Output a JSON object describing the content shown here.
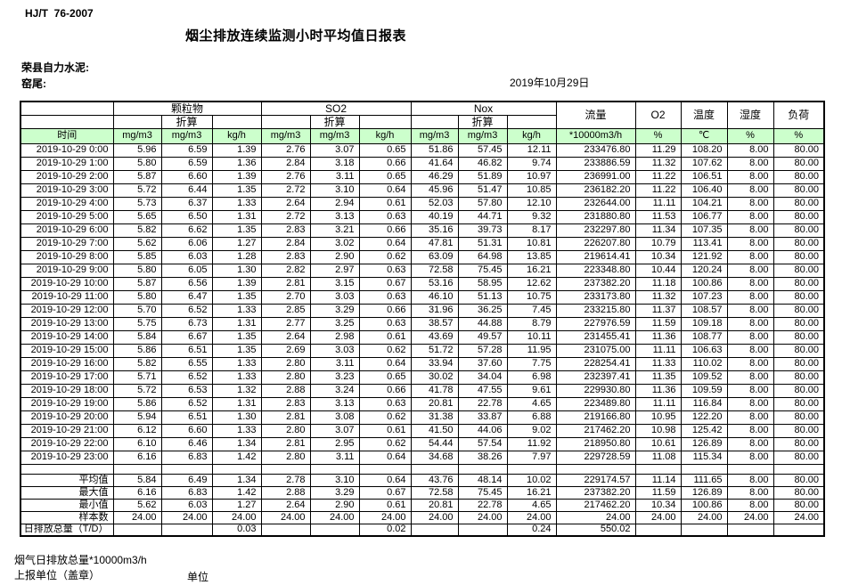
{
  "page": {
    "standard": "HJ/T  76-2007",
    "title": "烟尘排放连续监测小时平均值日报表",
    "company": "荣县自力水泥:",
    "site": "窑尾:",
    "date": "2019年10月29日"
  },
  "table": {
    "time_header": "时间",
    "converted_label": "折算",
    "group_units": [
      "mg/m3",
      "mg/m3",
      "kg/h"
    ],
    "groups": [
      {
        "label": "颗粒物"
      },
      {
        "label": "SO2"
      },
      {
        "label": "Nox"
      }
    ],
    "single_columns": [
      {
        "label": "流量",
        "unit": "*10000m3/h"
      },
      {
        "label": "O2",
        "unit": "%"
      },
      {
        "label": "温度",
        "unit": "℃"
      },
      {
        "label": "湿度",
        "unit": "%"
      },
      {
        "label": "负荷",
        "unit": "%"
      }
    ],
    "rows": [
      {
        "time": "2019-10-29 0:00",
        "values": [
          "5.96",
          "6.59",
          "1.39",
          "2.76",
          "3.07",
          "0.65",
          "51.86",
          "57.45",
          "12.11",
          "233476.80",
          "11.29",
          "108.20",
          "8.00",
          "80.00"
        ]
      },
      {
        "time": "2019-10-29 1:00",
        "values": [
          "5.80",
          "6.59",
          "1.36",
          "2.84",
          "3.18",
          "0.66",
          "41.64",
          "46.82",
          "9.74",
          "233886.59",
          "11.32",
          "107.62",
          "8.00",
          "80.00"
        ]
      },
      {
        "time": "2019-10-29 2:00",
        "values": [
          "5.87",
          "6.60",
          "1.39",
          "2.76",
          "3.11",
          "0.65",
          "46.29",
          "51.89",
          "10.97",
          "236991.00",
          "11.22",
          "106.51",
          "8.00",
          "80.00"
        ]
      },
      {
        "time": "2019-10-29 3:00",
        "values": [
          "5.72",
          "6.44",
          "1.35",
          "2.72",
          "3.10",
          "0.64",
          "45.96",
          "51.47",
          "10.85",
          "236182.20",
          "11.22",
          "106.40",
          "8.00",
          "80.00"
        ]
      },
      {
        "time": "2019-10-29 4:00",
        "values": [
          "5.73",
          "6.37",
          "1.33",
          "2.64",
          "2.94",
          "0.61",
          "52.03",
          "57.80",
          "12.10",
          "232644.00",
          "11.11",
          "104.21",
          "8.00",
          "80.00"
        ]
      },
      {
        "time": "2019-10-29 5:00",
        "values": [
          "5.65",
          "6.50",
          "1.31",
          "2.72",
          "3.13",
          "0.63",
          "40.19",
          "44.71",
          "9.32",
          "231880.80",
          "11.53",
          "106.77",
          "8.00",
          "80.00"
        ]
      },
      {
        "time": "2019-10-29 6:00",
        "values": [
          "5.82",
          "6.62",
          "1.35",
          "2.83",
          "3.21",
          "0.66",
          "35.16",
          "39.73",
          "8.17",
          "232297.80",
          "11.34",
          "107.35",
          "8.00",
          "80.00"
        ]
      },
      {
        "time": "2019-10-29 7:00",
        "values": [
          "5.62",
          "6.06",
          "1.27",
          "2.84",
          "3.02",
          "0.64",
          "47.81",
          "51.31",
          "10.81",
          "226207.80",
          "10.79",
          "113.41",
          "8.00",
          "80.00"
        ]
      },
      {
        "time": "2019-10-29 8:00",
        "values": [
          "5.85",
          "6.03",
          "1.28",
          "2.83",
          "2.90",
          "0.62",
          "63.09",
          "64.98",
          "13.85",
          "219614.41",
          "10.34",
          "121.92",
          "8.00",
          "80.00"
        ]
      },
      {
        "time": "2019-10-29 9:00",
        "values": [
          "5.80",
          "6.05",
          "1.30",
          "2.82",
          "2.97",
          "0.63",
          "72.58",
          "75.45",
          "16.21",
          "223348.80",
          "10.44",
          "120.24",
          "8.00",
          "80.00"
        ]
      },
      {
        "time": "2019-10-29 10:00",
        "values": [
          "5.87",
          "6.56",
          "1.39",
          "2.81",
          "3.15",
          "0.67",
          "53.16",
          "58.95",
          "12.62",
          "237382.20",
          "11.18",
          "100.86",
          "8.00",
          "80.00"
        ]
      },
      {
        "time": "2019-10-29 11:00",
        "values": [
          "5.80",
          "6.47",
          "1.35",
          "2.70",
          "3.03",
          "0.63",
          "46.10",
          "51.13",
          "10.75",
          "233173.80",
          "11.32",
          "107.23",
          "8.00",
          "80.00"
        ]
      },
      {
        "time": "2019-10-29 12:00",
        "values": [
          "5.70",
          "6.52",
          "1.33",
          "2.85",
          "3.29",
          "0.66",
          "31.96",
          "36.25",
          "7.45",
          "233215.80",
          "11.37",
          "108.57",
          "8.00",
          "80.00"
        ]
      },
      {
        "time": "2019-10-29 13:00",
        "values": [
          "5.75",
          "6.73",
          "1.31",
          "2.77",
          "3.25",
          "0.63",
          "38.57",
          "44.88",
          "8.79",
          "227976.59",
          "11.59",
          "109.18",
          "8.00",
          "80.00"
        ]
      },
      {
        "time": "2019-10-29 14:00",
        "values": [
          "5.84",
          "6.67",
          "1.35",
          "2.64",
          "2.98",
          "0.61",
          "43.69",
          "49.57",
          "10.11",
          "231455.41",
          "11.36",
          "108.77",
          "8.00",
          "80.00"
        ]
      },
      {
        "time": "2019-10-29 15:00",
        "values": [
          "5.86",
          "6.51",
          "1.35",
          "2.69",
          "3.03",
          "0.62",
          "51.72",
          "57.28",
          "11.95",
          "231075.00",
          "11.11",
          "106.63",
          "8.00",
          "80.00"
        ]
      },
      {
        "time": "2019-10-29 16:00",
        "values": [
          "5.82",
          "6.55",
          "1.33",
          "2.80",
          "3.11",
          "0.64",
          "33.94",
          "37.60",
          "7.75",
          "228254.41",
          "11.33",
          "110.02",
          "8.00",
          "80.00"
        ]
      },
      {
        "time": "2019-10-29 17:00",
        "values": [
          "5.71",
          "6.52",
          "1.33",
          "2.80",
          "3.23",
          "0.65",
          "30.02",
          "34.04",
          "6.98",
          "232397.41",
          "11.35",
          "109.52",
          "8.00",
          "80.00"
        ]
      },
      {
        "time": "2019-10-29 18:00",
        "values": [
          "5.72",
          "6.53",
          "1.32",
          "2.88",
          "3.24",
          "0.66",
          "41.78",
          "47.55",
          "9.61",
          "229930.80",
          "11.36",
          "109.59",
          "8.00",
          "80.00"
        ]
      },
      {
        "time": "2019-10-29 19:00",
        "values": [
          "5.86",
          "6.52",
          "1.31",
          "2.83",
          "3.13",
          "0.63",
          "20.81",
          "22.78",
          "4.65",
          "223489.80",
          "11.11",
          "116.84",
          "8.00",
          "80.00"
        ]
      },
      {
        "time": "2019-10-29 20:00",
        "values": [
          "5.94",
          "6.51",
          "1.30",
          "2.81",
          "3.08",
          "0.62",
          "31.38",
          "33.87",
          "6.88",
          "219166.80",
          "10.95",
          "122.20",
          "8.00",
          "80.00"
        ]
      },
      {
        "time": "2019-10-29 21:00",
        "values": [
          "6.12",
          "6.60",
          "1.33",
          "2.80",
          "3.07",
          "0.61",
          "41.50",
          "44.06",
          "9.02",
          "217462.20",
          "10.98",
          "125.42",
          "8.00",
          "80.00"
        ]
      },
      {
        "time": "2019-10-29 22:00",
        "values": [
          "6.10",
          "6.46",
          "1.34",
          "2.81",
          "2.95",
          "0.62",
          "54.44",
          "57.54",
          "11.92",
          "218950.80",
          "10.61",
          "126.89",
          "8.00",
          "80.00"
        ]
      },
      {
        "time": "2019-10-29 23:00",
        "values": [
          "6.16",
          "6.83",
          "1.42",
          "2.80",
          "3.11",
          "0.64",
          "34.68",
          "38.26",
          "7.97",
          "229728.59",
          "11.08",
          "115.34",
          "8.00",
          "80.00"
        ]
      }
    ],
    "summary_rows": [
      {
        "label": "平均值",
        "values": [
          "5.84",
          "6.49",
          "1.34",
          "2.78",
          "3.10",
          "0.64",
          "43.76",
          "48.14",
          "10.02",
          "229174.57",
          "11.14",
          "111.65",
          "8.00",
          "80.00"
        ]
      },
      {
        "label": "最大值",
        "values": [
          "6.16",
          "6.83",
          "1.42",
          "2.88",
          "3.29",
          "0.67",
          "72.58",
          "75.45",
          "16.21",
          "237382.20",
          "11.59",
          "126.89",
          "8.00",
          "80.00"
        ]
      },
      {
        "label": "最小值",
        "values": [
          "5.62",
          "6.03",
          "1.27",
          "2.64",
          "2.90",
          "0.61",
          "20.81",
          "22.78",
          "4.65",
          "217462.20",
          "10.34",
          "100.86",
          "8.00",
          "80.00"
        ]
      },
      {
        "label": "样本数",
        "values": [
          "24.00",
          "24.00",
          "24.00",
          "24.00",
          "24.00",
          "24.00",
          "24.00",
          "24.00",
          "24.00",
          "24.00",
          "24.00",
          "24.00",
          "24.00",
          "24.00"
        ]
      },
      {
        "label": "日排放总量（T/D）",
        "values": [
          "",
          "",
          "0.03",
          "",
          "",
          "0.02",
          "",
          "",
          "0.24",
          "550.02",
          "",
          "",
          "",
          ""
        ]
      }
    ]
  },
  "footer": {
    "flue_gas_note": "烟气日排放总量*10000m3/h",
    "report_unit_label": "上报单位（盖章）",
    "unit_label": "单位"
  }
}
